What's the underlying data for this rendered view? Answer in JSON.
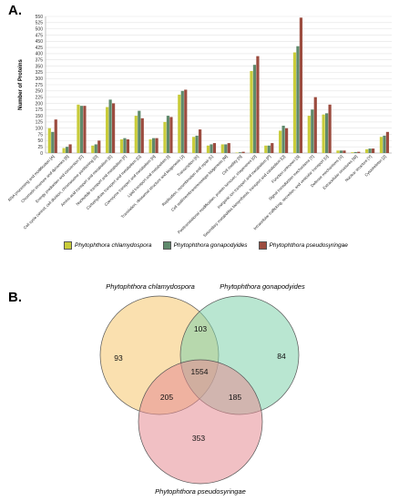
{
  "panel_a_label": "A.",
  "panel_b_label": "B.",
  "colors": {
    "chlamydospora": "#c9cc3a",
    "gonapodyides": "#5f8a6c",
    "pseudosyringae": "#9c4c3f",
    "venn_chlamydospora": "#f5c66e",
    "venn_gonapodyides": "#7fd1ab",
    "venn_pseudosyringae": "#e58d94"
  },
  "chart_data": [
    {
      "type": "bar",
      "ylabel": "Number of Proteins",
      "ylim": [
        0,
        550
      ],
      "yticks": [
        0,
        25,
        50,
        75,
        100,
        125,
        150,
        175,
        200,
        225,
        250,
        275,
        300,
        325,
        350,
        375,
        400,
        425,
        450,
        475,
        500,
        525,
        550
      ],
      "grid": true,
      "legend_position": "bottom",
      "categories": [
        "RNA processing and modification [A]",
        "Chromatin structure and dynamics [B]",
        "Energy production and conversion [C]",
        "Cell cycle control, cell division, chromosome partitioning [D]",
        "Amino acid transport and metabolism [E]",
        "Nucleotide transport and metabolism [F]",
        "Carbohydrate transport and metabolism [G]",
        "Coenzyme transport and metabolism [H]",
        "Lipid transport and metabolism [I]",
        "Translation, ribosomal structure and biogenesis [J]",
        "Transcription [K]",
        "Replication, recombination and repair [L]",
        "Cell wall/membrane/envelope biogenesis [M]",
        "Cell motility [N]",
        "Posttranslational modification, protein turnover, chaperones [O]",
        "Inorganic ion transport and metabolism [P]",
        "Secondary metabolites biosynthesis, transport and catabolism [Q]",
        "Function unknown [S]",
        "Signal transduction mechanisms [T]",
        "Intracellular trafficking, secretion, and vesicular transport [U]",
        "Defense mechanisms [V]",
        "Extracellular structures [W]",
        "Nuclear structure [Y]",
        "Cytoskeleton [Z]"
      ],
      "series": [
        {
          "name": "Phytophthora chlamydospora",
          "values": [
            100,
            20,
            195,
            30,
            185,
            55,
            150,
            55,
            125,
            235,
            65,
            30,
            35,
            2,
            330,
            30,
            90,
            405,
            150,
            155,
            10,
            3,
            15,
            65
          ]
        },
        {
          "name": "Phytophthora gonapodyides",
          "values": [
            85,
            25,
            190,
            35,
            215,
            60,
            170,
            60,
            150,
            250,
            70,
            35,
            35,
            3,
            355,
            30,
            110,
            430,
            175,
            160,
            10,
            4,
            18,
            70
          ]
        },
        {
          "name": "Phytophthora pseudosyringae",
          "values": [
            135,
            35,
            190,
            50,
            200,
            55,
            140,
            60,
            145,
            255,
            95,
            40,
            40,
            5,
            390,
            40,
            100,
            545,
            225,
            195,
            10,
            5,
            18,
            85
          ]
        }
      ]
    },
    {
      "type": "venn",
      "sets": [
        "Phytophthora chlamydospora",
        "Phytophthora gonapodyides",
        "Phytophthora pseudosyringae"
      ],
      "regions": {
        "chlamydospora_only": 93,
        "gonapodyides_only": 84,
        "pseudosyringae_only": 353,
        "chlamydospora_gonapodyides": 103,
        "chlamydospora_pseudosyringae": 205,
        "gonapodyides_pseudosyringae": 185,
        "all_three": 1554
      }
    }
  ]
}
